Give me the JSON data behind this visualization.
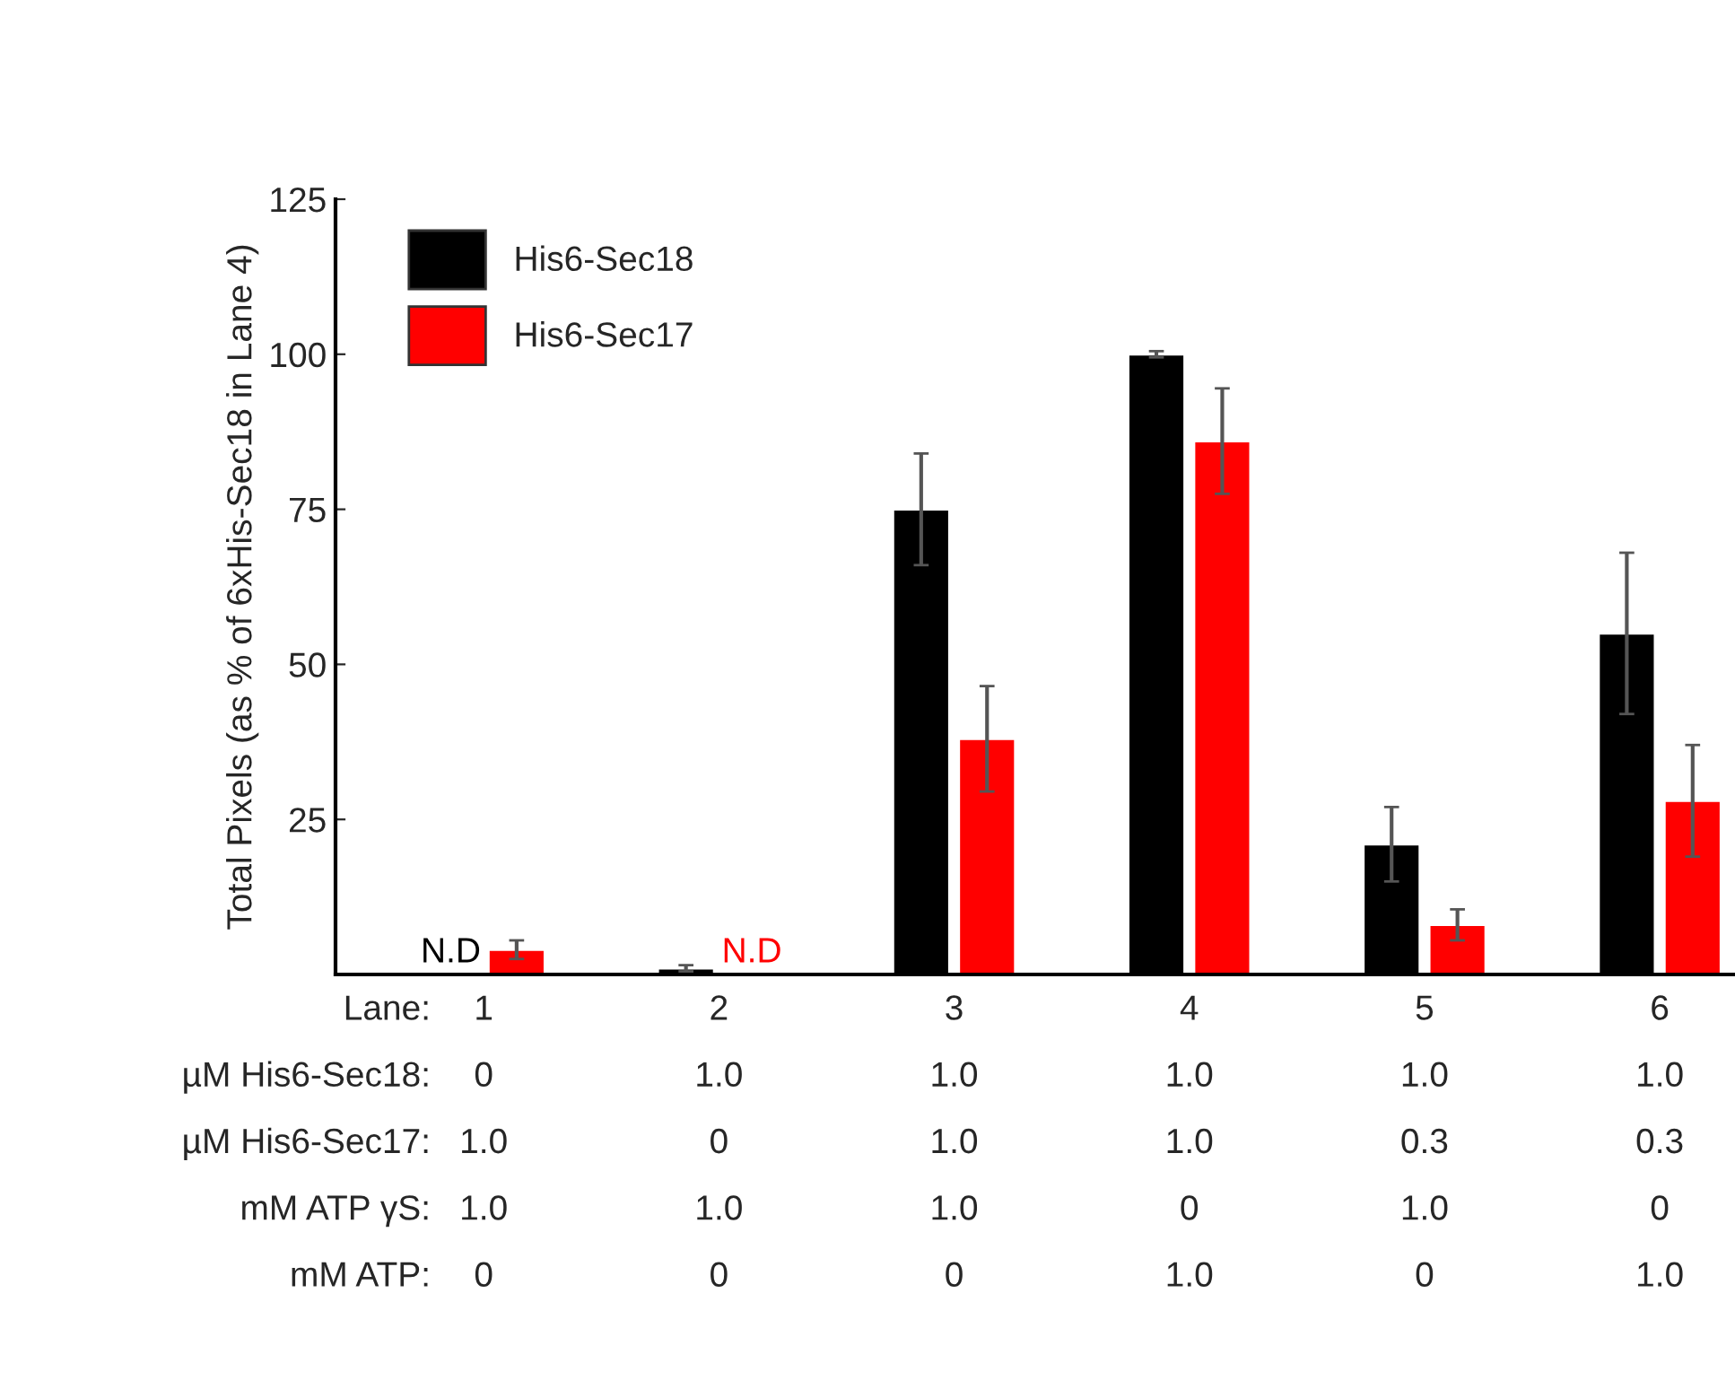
{
  "chart_data": {
    "type": "bar",
    "ylabel": "Total Pixels (as % of 6xHis-Sec18 in Lane 4)",
    "categories": [
      "1\n0\n1.0\n1.0\n0",
      "2\n1.0\n0\n1.0\n0",
      "3\n1.0\n1.0\n1.0\n0",
      "4\n1.0\n1.0\n0\n1.0",
      "5\n1.0\n0.3\n1.0\n0",
      "6\n1.0\n0.3\n0\n1.0"
    ],
    "series": [
      {
        "name": "His6-Sec18",
        "color": "#000000",
        "values": [
          null,
          1,
          75,
          100,
          21,
          55
        ],
        "errors": [
          null,
          0.5,
          9,
          0.5,
          6,
          13
        ],
        "value_labels": [
          "N.D",
          null,
          null,
          null,
          null,
          null
        ]
      },
      {
        "name": "His6-Sec17",
        "color": "#ff0000",
        "values": [
          4,
          null,
          38,
          86,
          8,
          28
        ],
        "errors": [
          1.5,
          null,
          8.5,
          8.5,
          2.5,
          9
        ],
        "value_labels": [
          null,
          "N.D",
          null,
          null,
          null,
          null
        ]
      }
    ],
    "annotations": [
      "Lane:",
      "µM His6-Sec18:",
      "µM His6-Sec17:",
      "mM ATP γS:",
      "mM ATP:"
    ],
    "ylim": [
      0,
      125
    ],
    "yticks": [
      25,
      50,
      75,
      100,
      125
    ],
    "grid": false,
    "legend": "top left"
  }
}
